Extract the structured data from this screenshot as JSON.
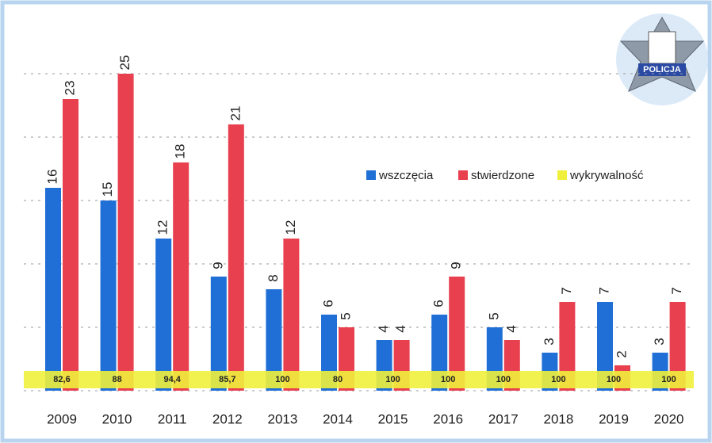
{
  "chart_data": {
    "type": "bar",
    "categories": [
      "2009",
      "2010",
      "2011",
      "2012",
      "2013",
      "2014",
      "2015",
      "2016",
      "2017",
      "2018",
      "2019",
      "2020"
    ],
    "series": [
      {
        "name": "wszczęcia",
        "color": "#1f6fd6",
        "values": [
          16,
          15,
          12,
          9,
          8,
          6,
          4,
          6,
          5,
          3,
          7,
          3
        ]
      },
      {
        "name": "stwierdzone",
        "color": "#e8404f",
        "values": [
          23,
          25,
          18,
          21,
          12,
          5,
          4,
          9,
          4,
          7,
          2,
          7
        ]
      },
      {
        "name": "wykrywalność",
        "color": "#f0f03c",
        "values": [
          82.6,
          88,
          94.4,
          85.7,
          100,
          80,
          100,
          100,
          100,
          100,
          100,
          100
        ],
        "value_labels": [
          "82,6",
          "88",
          "94,4",
          "85,7",
          "100",
          "80",
          "100",
          "100",
          "100",
          "100",
          "100",
          "100"
        ]
      }
    ],
    "ylim": [
      0,
      25
    ],
    "yticks": [
      0,
      5,
      10,
      15,
      20,
      25
    ],
    "grid": true,
    "logo_text": "POLICJA"
  }
}
